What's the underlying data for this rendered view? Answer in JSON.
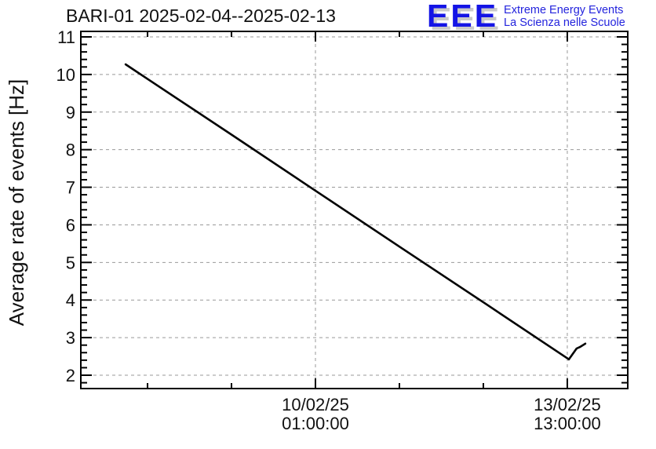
{
  "header": {
    "title": "BARI-01 2025-02-04--2025-02-13",
    "logo": {
      "acronym": "EEE",
      "line1": "Extreme Energy Events",
      "line2": "La Scienza nelle Scuole",
      "accent_color": "#1414e6",
      "shadow_color": "#c9c9c9"
    }
  },
  "chart_data": {
    "type": "line",
    "title": "BARI-01 2025-02-04--2025-02-13",
    "station": "BARI-01",
    "date_range": "2025-02-04--2025-02-13",
    "xlabel": "",
    "ylabel": "Average rate of events [Hz]",
    "ylim": [
      1.645,
      11.146
    ],
    "y_major_ticks": [
      2,
      3,
      4,
      5,
      6,
      7,
      8,
      9,
      10,
      11
    ],
    "y_minor_step": 0.2,
    "grid": true,
    "grid_color": "#999999",
    "line_color": "#000000",
    "x_axis": {
      "unit": "hours relative to 2025-02-10 01:00:00",
      "xlim_hours": [
        -78.25,
        104.16
      ],
      "tick_step_hours": 28,
      "minor_ticks_hours": [
        -56,
        -28,
        28,
        56
      ],
      "major_ticks": [
        {
          "hours": 0,
          "label_line1": "10/02/25",
          "label_line2": "01:00:00"
        },
        {
          "hours": 84,
          "label_line1": "13/02/25",
          "label_line2": "13:00:00"
        }
      ]
    },
    "series": [
      {
        "name": "average-rate-of-events",
        "points_hours_hz": [
          [
            -63.3,
            10.27
          ],
          [
            -56.0,
            9.88
          ],
          [
            -28.0,
            8.4
          ],
          [
            0.0,
            6.91
          ],
          [
            28.0,
            5.42
          ],
          [
            56.0,
            3.94
          ],
          [
            84.0,
            2.45
          ],
          [
            84.5,
            2.42
          ],
          [
            87.1,
            2.71
          ],
          [
            88.2,
            2.75
          ],
          [
            90.0,
            2.84
          ]
        ]
      }
    ]
  }
}
